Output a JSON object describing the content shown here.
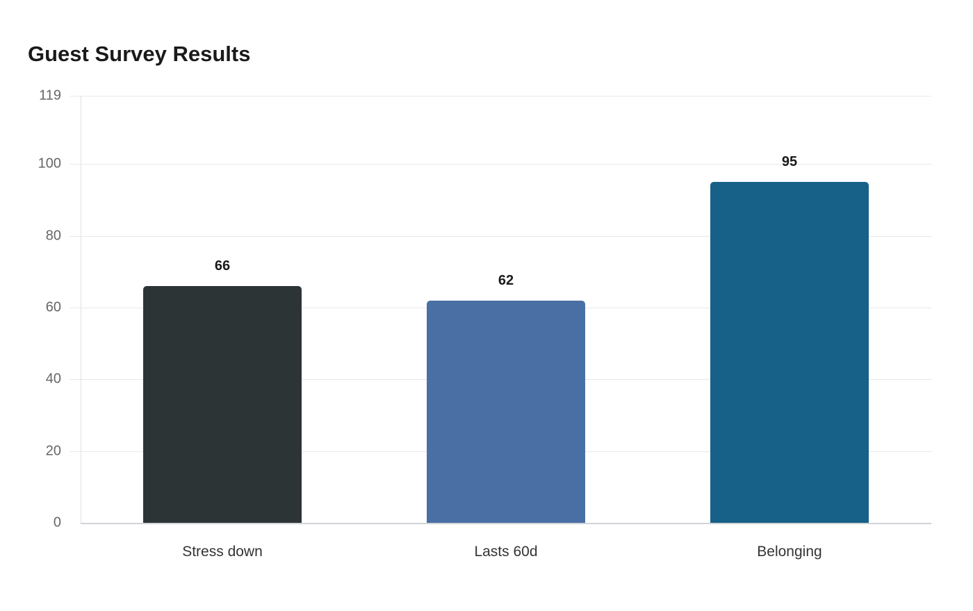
{
  "chart_data": {
    "type": "bar",
    "title": "Guest Survey Results",
    "xlabel": "",
    "ylabel": "",
    "ylim": [
      0,
      119
    ],
    "yticks": [
      0,
      20,
      40,
      60,
      80,
      100,
      119
    ],
    "grid": true,
    "legend": null,
    "categories": [
      "Stress down",
      "Lasts 60d",
      "Belonging"
    ],
    "values": [
      66,
      62,
      95
    ],
    "colors": [
      "#2d3436",
      "#4a6fa5",
      "#176087"
    ]
  }
}
